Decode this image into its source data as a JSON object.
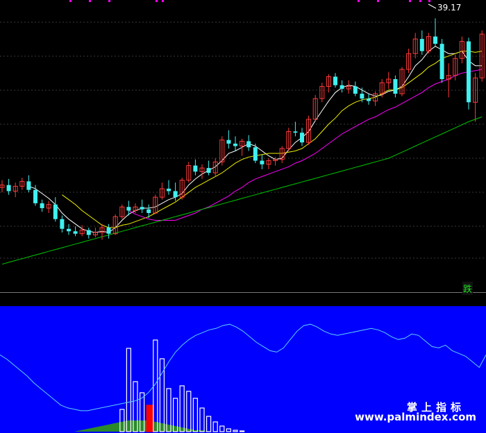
{
  "labels": {
    "price_label": "39.17",
    "signal_label": "跌",
    "watermark_cn": "掌上指标",
    "watermark_url": "www.palmindex.com"
  },
  "colors": {
    "background": "#000000",
    "grid": "#3a3a3a",
    "bull": "#ff3a3a",
    "bear": "#40f0f0",
    "ma_white": "#ffffff",
    "ma_yellow": "#f0f000",
    "ma_magenta": "#ff00ff",
    "ma_green": "#00c800",
    "indicator_fill": "#0000ff",
    "indicator_line": "#5fd0ff",
    "histogram_white": "#ffffff",
    "histogram_red": "#ff0000",
    "histogram_green_area": "#2a8a2a"
  },
  "chart_data": [
    {
      "type": "candlestick",
      "title": "",
      "ylim": [
        16,
        40
      ],
      "annotation": {
        "text": "39.17",
        "value": 39.17
      },
      "candles": [
        [
          24.6,
          25.2,
          24.2,
          24.8
        ],
        [
          24.8,
          25.3,
          24.0,
          24.3
        ],
        [
          24.3,
          25.0,
          23.8,
          24.7
        ],
        [
          24.7,
          25.4,
          24.4,
          25.1
        ],
        [
          25.1,
          25.6,
          24.2,
          24.4
        ],
        [
          24.4,
          24.8,
          23.1,
          23.3
        ],
        [
          23.3,
          23.6,
          22.6,
          22.9
        ],
        [
          22.9,
          23.5,
          22.5,
          23.2
        ],
        [
          23.2,
          23.8,
          21.8,
          22.0
        ],
        [
          22.0,
          22.3,
          20.9,
          21.2
        ],
        [
          21.2,
          21.6,
          20.7,
          21.0
        ],
        [
          21.0,
          21.4,
          20.6,
          20.8
        ],
        [
          20.8,
          21.5,
          20.6,
          21.1
        ],
        [
          21.1,
          21.3,
          20.4,
          20.7
        ],
        [
          20.7,
          21.3,
          20.5,
          20.9
        ],
        [
          20.9,
          21.6,
          20.3,
          21.3
        ],
        [
          21.3,
          21.6,
          20.4,
          20.8
        ],
        [
          20.8,
          22.4,
          20.7,
          22.2
        ],
        [
          22.2,
          23.2,
          22.0,
          23.0
        ],
        [
          23.0,
          23.5,
          22.3,
          22.7
        ],
        [
          22.7,
          23.3,
          22.5,
          23.0
        ],
        [
          23.0,
          23.6,
          22.5,
          22.8
        ],
        [
          22.8,
          23.2,
          22.1,
          22.5
        ],
        [
          22.5,
          24.0,
          22.4,
          23.8
        ],
        [
          23.8,
          25.0,
          23.6,
          24.5
        ],
        [
          24.5,
          25.2,
          24.0,
          24.3
        ],
        [
          24.3,
          25.0,
          23.5,
          23.8
        ],
        [
          23.8,
          25.4,
          23.6,
          25.2
        ],
        [
          25.2,
          26.7,
          25.0,
          26.4
        ],
        [
          26.4,
          26.9,
          25.6,
          25.9
        ],
        [
          25.9,
          26.5,
          25.3,
          26.2
        ],
        [
          26.2,
          26.8,
          25.6,
          25.8
        ],
        [
          25.8,
          27.0,
          25.5,
          26.7
        ],
        [
          26.7,
          28.8,
          26.4,
          28.5
        ],
        [
          28.5,
          29.3,
          27.8,
          28.2
        ],
        [
          28.2,
          28.8,
          27.6,
          28.0
        ],
        [
          28.0,
          28.6,
          27.2,
          28.4
        ],
        [
          28.4,
          28.9,
          27.6,
          27.9
        ],
        [
          27.9,
          28.2,
          26.6,
          26.8
        ],
        [
          26.8,
          27.3,
          26.1,
          26.5
        ],
        [
          26.5,
          27.0,
          26.1,
          26.8
        ],
        [
          26.8,
          27.1,
          26.4,
          26.9
        ],
        [
          26.9,
          28.0,
          26.6,
          27.8
        ],
        [
          27.8,
          29.5,
          27.6,
          29.2
        ],
        [
          29.2,
          30.0,
          28.8,
          29.1
        ],
        [
          29.1,
          29.5,
          28.0,
          28.3
        ],
        [
          28.3,
          30.5,
          28.1,
          30.2
        ],
        [
          30.2,
          32.2,
          30.0,
          31.9
        ],
        [
          31.9,
          33.2,
          31.6,
          32.9
        ],
        [
          32.9,
          33.9,
          32.4,
          33.7
        ],
        [
          33.7,
          34.0,
          32.8,
          33.0
        ],
        [
          33.0,
          33.4,
          32.4,
          32.7
        ],
        [
          32.7,
          33.4,
          32.3,
          32.9
        ],
        [
          32.9,
          33.3,
          32.1,
          32.3
        ],
        [
          32.3,
          32.8,
          31.6,
          31.9
        ],
        [
          31.9,
          32.3,
          31.4,
          31.7
        ],
        [
          31.7,
          32.5,
          31.3,
          32.3
        ],
        [
          32.3,
          33.5,
          32.0,
          33.2
        ],
        [
          33.2,
          34.1,
          32.7,
          33.5
        ],
        [
          33.5,
          33.8,
          32.0,
          32.3
        ],
        [
          32.3,
          34.5,
          32.1,
          34.3
        ],
        [
          34.3,
          36.0,
          34.0,
          35.6
        ],
        [
          35.6,
          37.3,
          35.2,
          36.8
        ],
        [
          36.8,
          37.5,
          35.5,
          35.8
        ],
        [
          35.8,
          37.3,
          35.6,
          37.0
        ],
        [
          37.0,
          38.5,
          36.2,
          36.4
        ],
        [
          36.4,
          36.8,
          33.2,
          33.5
        ],
        [
          33.5,
          34.8,
          32.0,
          33.8
        ],
        [
          33.8,
          35.5,
          33.4,
          35.2
        ],
        [
          35.2,
          37.0,
          34.8,
          36.6
        ],
        [
          36.6,
          36.9,
          31.0,
          31.6
        ],
        [
          31.6,
          34.0,
          30.0,
          33.6
        ],
        [
          33.6,
          37.5,
          33.3,
          37.2
        ]
      ],
      "moving_averages": [
        {
          "color": "white",
          "values": [
            null,
            null,
            null,
            null,
            24.7,
            24.5,
            24.1,
            23.7,
            23.2,
            22.5,
            22.0,
            21.6,
            21.2,
            21.0,
            20.9,
            21.0,
            20.9,
            21.3,
            21.9,
            22.4,
            22.7,
            22.9,
            22.9,
            23.0,
            23.3,
            23.6,
            23.8,
            24.1,
            24.8,
            25.3,
            25.7,
            26.0,
            26.3,
            26.8,
            27.4,
            27.6,
            27.9,
            28.2,
            28.0,
            27.6,
            27.2,
            26.9,
            27.0,
            27.7,
            28.3,
            28.7,
            29.2,
            30.1,
            30.9,
            31.7,
            32.4,
            32.8,
            33.0,
            32.9,
            32.6,
            32.3,
            32.1,
            32.2,
            32.5,
            32.6,
            32.9,
            33.7,
            34.6,
            35.1,
            35.8,
            36.2,
            35.9,
            35.6,
            35.6,
            35.8,
            35.0,
            34.6,
            34.6
          ]
        },
        {
          "color": "yellow",
          "values": [
            null,
            null,
            null,
            null,
            null,
            null,
            null,
            null,
            null,
            24.0,
            23.6,
            23.2,
            22.7,
            22.3,
            21.9,
            21.5,
            21.3,
            21.3,
            21.5,
            21.6,
            21.8,
            22.0,
            22.2,
            22.5,
            22.8,
            23.1,
            23.4,
            23.8,
            24.2,
            24.6,
            24.9,
            25.2,
            25.5,
            25.8,
            26.2,
            26.6,
            26.9,
            27.1,
            27.2,
            27.3,
            27.4,
            27.4,
            27.4,
            27.5,
            27.6,
            27.8,
            28.2,
            28.6,
            29.2,
            29.8,
            30.3,
            30.9,
            31.3,
            31.6,
            31.8,
            31.9,
            32.0,
            32.3,
            32.6,
            32.6,
            32.8,
            33.2,
            33.6,
            34.0,
            34.5,
            34.8,
            35.2,
            35.4,
            35.6,
            35.8,
            35.8,
            35.7,
            35.8
          ]
        },
        {
          "color": "magenta",
          "values": [
            null,
            null,
            null,
            null,
            null,
            null,
            null,
            null,
            null,
            null,
            null,
            null,
            null,
            null,
            null,
            null,
            null,
            null,
            null,
            22.7,
            22.4,
            22.2,
            22.0,
            21.9,
            21.9,
            21.9,
            21.9,
            22.1,
            22.3,
            22.5,
            22.8,
            23.0,
            23.3,
            23.6,
            23.9,
            24.3,
            24.6,
            25.0,
            25.3,
            25.5,
            25.7,
            25.9,
            26.1,
            26.3,
            26.6,
            26.8,
            27.1,
            27.4,
            27.8,
            28.2,
            28.6,
            29.0,
            29.3,
            29.6,
            29.9,
            30.2,
            30.4,
            30.7,
            31.0,
            31.2,
            31.5,
            31.8,
            32.1,
            32.4,
            32.8,
            33.1,
            33.3,
            33.5,
            33.8,
            34.0,
            34.1,
            34.2,
            34.3
          ]
        },
        {
          "color": "green",
          "values": [
            18.3,
            18.45,
            18.6,
            18.75,
            18.9,
            19.05,
            19.2,
            19.35,
            19.5,
            19.65,
            19.8,
            19.95,
            20.1,
            20.25,
            20.4,
            20.55,
            20.7,
            20.85,
            21.0,
            21.15,
            21.3,
            21.45,
            21.6,
            21.75,
            21.9,
            22.05,
            22.2,
            22.35,
            22.5,
            22.65,
            22.8,
            22.95,
            23.1,
            23.25,
            23.4,
            23.55,
            23.7,
            23.85,
            24.0,
            24.15,
            24.3,
            24.45,
            24.6,
            24.75,
            24.9,
            25.05,
            25.2,
            25.35,
            25.5,
            25.65,
            25.8,
            25.95,
            26.1,
            26.25,
            26.4,
            26.55,
            26.7,
            26.85,
            27.0,
            27.25,
            27.5,
            27.75,
            28.0,
            28.25,
            28.5,
            28.75,
            29.0,
            29.25,
            29.5,
            29.75,
            30.0,
            30.2,
            30.4
          ]
        }
      ]
    },
    {
      "type": "area",
      "title": "",
      "ylim": [
        0,
        100
      ],
      "fill_top": 90,
      "line": [
        55,
        52,
        48,
        44,
        40,
        35,
        31,
        27,
        23,
        19,
        17,
        16,
        15,
        15,
        16,
        17,
        18,
        19,
        20,
        21,
        22,
        24,
        28,
        34,
        42,
        50,
        57,
        62,
        66,
        69,
        71,
        73,
        74,
        76,
        77,
        75,
        72,
        68,
        64,
        61,
        58,
        57,
        60,
        66,
        72,
        76,
        77,
        75,
        72,
        70,
        69,
        70,
        71,
        72,
        73,
        74,
        73,
        71,
        68,
        66,
        67,
        70,
        69,
        65,
        61,
        60,
        62,
        58,
        56,
        54,
        50,
        46,
        55
      ],
      "histogram": [
        {
          "x": 18,
          "value": 32,
          "color": "white"
        },
        {
          "x": 19,
          "value": 120,
          "color": "white"
        },
        {
          "x": 20,
          "value": 72,
          "color": "white"
        },
        {
          "x": 21,
          "value": 56,
          "color": "white"
        },
        {
          "x": 22,
          "value": 38,
          "color": "red"
        },
        {
          "x": 23,
          "value": 132,
          "color": "white"
        },
        {
          "x": 24,
          "value": 105,
          "color": "white"
        },
        {
          "x": 25,
          "value": 62,
          "color": "white"
        },
        {
          "x": 26,
          "value": 48,
          "color": "white"
        },
        {
          "x": 27,
          "value": 66,
          "color": "white"
        },
        {
          "x": 28,
          "value": 58,
          "color": "white"
        },
        {
          "x": 29,
          "value": 48,
          "color": "white"
        },
        {
          "x": 30,
          "value": 34,
          "color": "white"
        },
        {
          "x": 31,
          "value": 22,
          "color": "white"
        },
        {
          "x": 32,
          "value": 14,
          "color": "white"
        },
        {
          "x": 33,
          "value": 8,
          "color": "white"
        },
        {
          "x": 34,
          "value": 4,
          "color": "white"
        },
        {
          "x": 35,
          "value": 2,
          "color": "white"
        },
        {
          "x": 36,
          "value": 1,
          "color": "white"
        }
      ],
      "base_area": [
        0,
        0,
        0,
        0,
        0,
        0,
        0,
        0,
        0,
        0,
        0,
        0,
        1,
        2,
        3,
        4,
        5,
        6,
        7,
        8,
        8,
        8,
        8,
        7,
        6,
        5,
        4,
        3,
        2,
        1,
        1,
        0,
        0,
        0,
        0,
        0,
        0,
        0,
        0,
        0,
        0,
        0,
        0,
        0,
        0,
        0,
        0,
        0,
        0,
        0,
        0,
        0,
        0,
        0,
        0,
        0,
        0,
        0,
        0,
        0,
        0,
        0,
        0,
        0,
        0,
        0,
        0,
        0,
        0,
        0,
        0,
        0,
        0
      ]
    }
  ]
}
